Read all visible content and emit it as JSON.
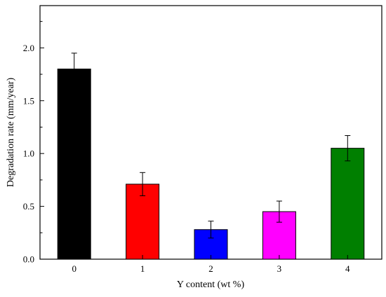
{
  "chart_data": {
    "type": "bar",
    "title": "",
    "xlabel": "Y content (wt %)",
    "ylabel": "Degradation rate (mm/year)",
    "categories": [
      "0",
      "1",
      "2",
      "3",
      "4"
    ],
    "values": [
      1.8,
      0.71,
      0.28,
      0.45,
      1.05
    ],
    "errors": [
      0.15,
      0.11,
      0.08,
      0.1,
      0.12
    ],
    "colors": [
      "#000000",
      "#ff0000",
      "#0000ff",
      "#ff00ff",
      "#007f00"
    ],
    "ylim": [
      0,
      2.4
    ],
    "yticks": [
      0.0,
      0.5,
      1.0,
      1.5,
      2.0
    ],
    "ytick_labels": [
      "0.0",
      "0.5",
      "1.0",
      "1.5",
      "2.0"
    ],
    "grid": false,
    "legend": "none"
  }
}
